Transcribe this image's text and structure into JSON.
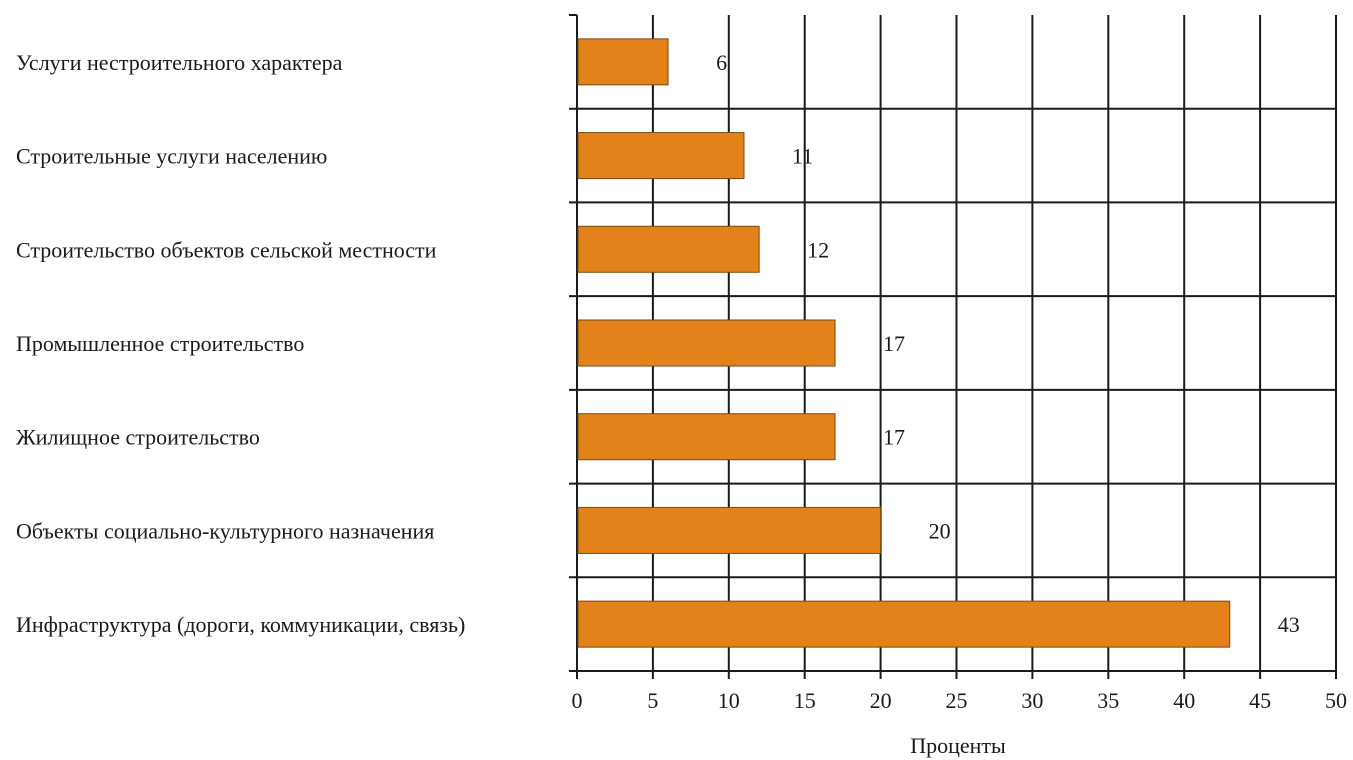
{
  "chart_data": {
    "type": "bar",
    "orientation": "horizontal",
    "categories": [
      "Услуги нестроительного характера",
      "Строительные услуги населению",
      "Строительство объектов сельской местности",
      "Промышленное строительство",
      "Жилищное строительство",
      "Объекты социально-культурного назначения",
      "Инфраструктура (дороги, коммуникации, связь)"
    ],
    "values": [
      6,
      11,
      12,
      17,
      17,
      20,
      43
    ],
    "data_labels": [
      "6",
      "11",
      "12",
      "17",
      "17",
      "20",
      "43"
    ],
    "xlabel": "Проценты",
    "ylabel": "",
    "xlim": [
      0,
      50
    ],
    "x_ticks": [
      0,
      5,
      10,
      15,
      20,
      25,
      30,
      35,
      40,
      45,
      50
    ],
    "x_tick_labels": [
      "0",
      "5",
      "10",
      "15",
      "20",
      "25",
      "30",
      "35",
      "40",
      "45",
      "50"
    ],
    "grid": true,
    "legend": "none",
    "colors": {
      "bar": "#E3821A",
      "bar_border": "#7A4A10",
      "grid": "#1A1A1A",
      "text": "#1A1A1A"
    }
  }
}
